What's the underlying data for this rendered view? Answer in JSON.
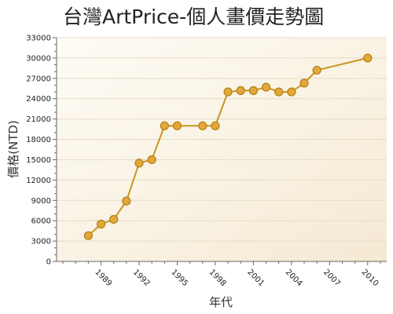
{
  "chart_data": {
    "type": "line",
    "title": "台灣ArtPrice-個人畫價走勢圖",
    "xlabel": "年代",
    "ylabel": "價格(NTD)",
    "xlim": [
      1985.5,
      2011.5
    ],
    "ylim": [
      0,
      33000
    ],
    "x_ticks": [
      "1989",
      "1992",
      "1995",
      "1998",
      "2001",
      "2004",
      "2007",
      "2010"
    ],
    "y_ticks": [
      "0",
      "3000",
      "6000",
      "9000",
      "12000",
      "15000",
      "18000",
      "21000",
      "24000",
      "27000",
      "30000",
      "33000"
    ],
    "grid": true,
    "legend": "none",
    "series": [
      {
        "x": [
          1988,
          1989,
          1990,
          1991,
          1992,
          1993,
          1994,
          1995,
          1997,
          1998,
          1999,
          2000,
          2001,
          2002,
          2003,
          2004,
          2005,
          2006,
          2010
        ],
        "values": [
          3800,
          5500,
          6200,
          8900,
          14500,
          15000,
          20000,
          20000,
          20000,
          20000,
          25000,
          25200,
          25200,
          25700,
          25000,
          25000,
          26300,
          28200,
          30000
        ]
      }
    ]
  },
  "colors": {
    "line": "#c8961e",
    "marker_fill": "#e4a83a",
    "marker_stroke": "#b37f14",
    "plot_bg_top": "#fefcf6",
    "plot_bg_bottom": "#f5e9d3",
    "grid": "#e6dcc6",
    "axis": "#666666"
  }
}
